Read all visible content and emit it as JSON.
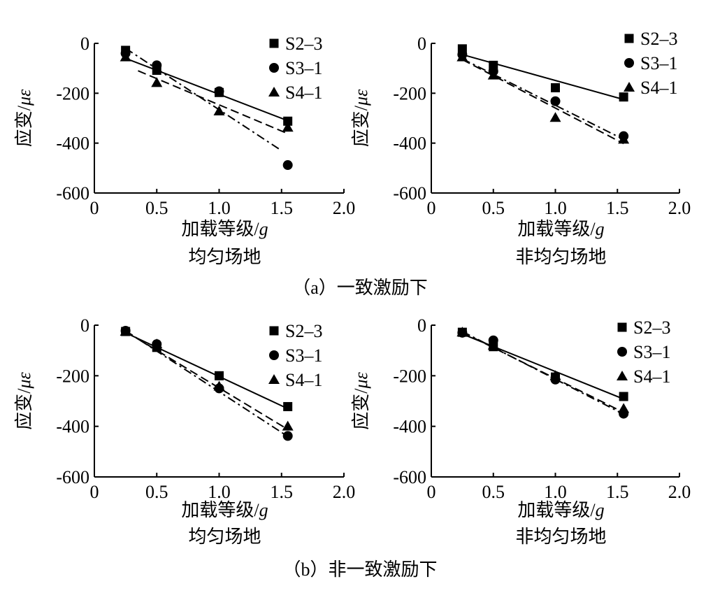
{
  "captions": {
    "row_a": "（a）一致激励下",
    "row_b": "（b）非一致激励下"
  },
  "chart_data": [
    {
      "type": "scatter",
      "id": "a-left",
      "xlabel_prefix": "加载等级/",
      "xlabel_unit": "g",
      "ylabel_prefix": "应变/",
      "ylabel_unit": "με",
      "subtitle": "均匀场地",
      "xlim": [
        0,
        2.0
      ],
      "ylim": [
        -600,
        0
      ],
      "xticks": [
        "0",
        "0.5",
        "1.0",
        "1.5",
        "2.0"
      ],
      "xtick_values": [
        0,
        0.5,
        1.0,
        1.5,
        2.0
      ],
      "yticks": [
        "0",
        "-200",
        "-400",
        "-600"
      ],
      "ytick_values": [
        0,
        -200,
        -400,
        -600
      ],
      "series": [
        {
          "name": "S2-3",
          "marker": "square",
          "line": "solid",
          "x": [
            0.25,
            0.5,
            1.0,
            1.55
          ],
          "y": [
            -28,
            -108,
            -197,
            -312
          ],
          "fit": [
            [
              0.25,
              -60
            ],
            [
              1.55,
              -310
            ]
          ]
        },
        {
          "name": "S3-1",
          "marker": "circle",
          "line": "dashdot",
          "x": [
            0.25,
            0.5,
            1.0,
            1.55
          ],
          "y": [
            -40,
            -88,
            -192,
            -488
          ],
          "fit": [
            [
              0.25,
              -20
            ],
            [
              1.5,
              -430
            ]
          ]
        },
        {
          "name": "S4-1",
          "marker": "triangle",
          "line": "dashed",
          "x": [
            0.25,
            0.5,
            1.0,
            1.55
          ],
          "y": [
            -55,
            -158,
            -272,
            -337
          ],
          "fit": [
            [
              0.35,
              -110
            ],
            [
              1.55,
              -362
            ]
          ]
        }
      ]
    },
    {
      "type": "scatter",
      "id": "a-right",
      "xlabel_prefix": "加载等级/",
      "xlabel_unit": "g",
      "ylabel_prefix": "应变/",
      "ylabel_unit": "με",
      "subtitle": "非均匀场地",
      "xlim": [
        0,
        2.0
      ],
      "ylim": [
        -600,
        0
      ],
      "xticks": [
        "0",
        "0.5",
        "1.0",
        "1.5",
        "2.0"
      ],
      "xtick_values": [
        0,
        0.5,
        1.0,
        1.5,
        2.0
      ],
      "yticks": [
        "0",
        "-200",
        "-400",
        "-600"
      ],
      "ytick_values": [
        0,
        -200,
        -400,
        -600
      ],
      "series": [
        {
          "name": "S2-3",
          "marker": "square",
          "line": "solid",
          "x": [
            0.25,
            0.5,
            1.0,
            1.55
          ],
          "y": [
            -22,
            -88,
            -178,
            -215
          ],
          "fit": [
            [
              0.25,
              -45
            ],
            [
              1.55,
              -225
            ]
          ]
        },
        {
          "name": "S3-1",
          "marker": "circle",
          "line": "dashdot",
          "x": [
            0.25,
            0.5,
            1.0,
            1.55
          ],
          "y": [
            -45,
            -112,
            -232,
            -372
          ],
          "fit": [
            [
              0.25,
              -62
            ],
            [
              1.55,
              -385
            ]
          ]
        },
        {
          "name": "S4-1",
          "marker": "triangle",
          "line": "dashed",
          "x": [
            0.25,
            0.5,
            1.0,
            1.55
          ],
          "y": [
            -55,
            -128,
            -298,
            -385
          ],
          "fit": [
            [
              0.25,
              -65
            ],
            [
              1.55,
              -402
            ]
          ]
        }
      ]
    },
    {
      "type": "scatter",
      "id": "b-left",
      "xlabel_prefix": "加载等级/",
      "xlabel_unit": "g",
      "ylabel_prefix": "应变/",
      "ylabel_unit": "με",
      "subtitle": "均匀场地",
      "xlim": [
        0,
        2.0
      ],
      "ylim": [
        -600,
        0
      ],
      "xticks": [
        "0",
        "0.5",
        "1.0",
        "1.5",
        "2.0"
      ],
      "xtick_values": [
        0,
        0.5,
        1.0,
        1.5,
        2.0
      ],
      "yticks": [
        "0",
        "-200",
        "-400",
        "-600"
      ],
      "ytick_values": [
        0,
        -200,
        -400,
        -600
      ],
      "series": [
        {
          "name": "S2-3",
          "marker": "square",
          "line": "solid",
          "x": [
            0.25,
            0.5,
            1.0,
            1.55
          ],
          "y": [
            -25,
            -88,
            -200,
            -322
          ],
          "fit": [
            [
              0.25,
              -30
            ],
            [
              1.55,
              -330
            ]
          ]
        },
        {
          "name": "S3-1",
          "marker": "circle",
          "line": "dashdot",
          "x": [
            0.25,
            0.5,
            1.0,
            1.55
          ],
          "y": [
            -22,
            -75,
            -250,
            -438
          ],
          "fit": [
            [
              0.25,
              -22
            ],
            [
              1.55,
              -440
            ]
          ]
        },
        {
          "name": "S4-1",
          "marker": "triangle",
          "line": "dashed",
          "x": [
            0.25,
            0.5,
            1.0,
            1.55
          ],
          "y": [
            -25,
            -75,
            -242,
            -400
          ],
          "fit": [
            [
              0.25,
              -25
            ],
            [
              1.55,
              -412
            ]
          ]
        }
      ]
    },
    {
      "type": "scatter",
      "id": "b-right",
      "xlabel_prefix": "加载等级/",
      "xlabel_unit": "g",
      "ylabel_prefix": "应变/",
      "ylabel_unit": "με",
      "subtitle": "非均匀场地",
      "xlim": [
        0,
        2.0
      ],
      "ylim": [
        -600,
        0
      ],
      "xticks": [
        "0",
        "0.5",
        "1.0",
        "1.5",
        "2.0"
      ],
      "xtick_values": [
        0,
        0.5,
        1.0,
        1.5,
        2.0
      ],
      "yticks": [
        "0",
        "-200",
        "-400",
        "-600"
      ],
      "ytick_values": [
        0,
        -200,
        -400,
        -600
      ],
      "series": [
        {
          "name": "S2-3",
          "marker": "square",
          "line": "solid",
          "x": [
            0.25,
            0.5,
            1.0,
            1.55
          ],
          "y": [
            -28,
            -85,
            -205,
            -282
          ],
          "fit": [
            [
              0.25,
              -35
            ],
            [
              1.55,
              -292
            ]
          ]
        },
        {
          "name": "S3-1",
          "marker": "circle",
          "line": "dashdot",
          "x": [
            0.25,
            0.5,
            1.0,
            1.55
          ],
          "y": [
            -30,
            -60,
            -215,
            -350
          ],
          "fit": [
            [
              0.25,
              -25
            ],
            [
              1.55,
              -352
            ]
          ]
        },
        {
          "name": "S4-1",
          "marker": "triangle",
          "line": "dashed",
          "x": [
            0.25,
            0.5,
            1.0,
            1.55
          ],
          "y": [
            -28,
            -80,
            -200,
            -330
          ],
          "fit": [
            [
              0.25,
              -28
            ],
            [
              1.55,
              -345
            ]
          ]
        }
      ]
    }
  ]
}
